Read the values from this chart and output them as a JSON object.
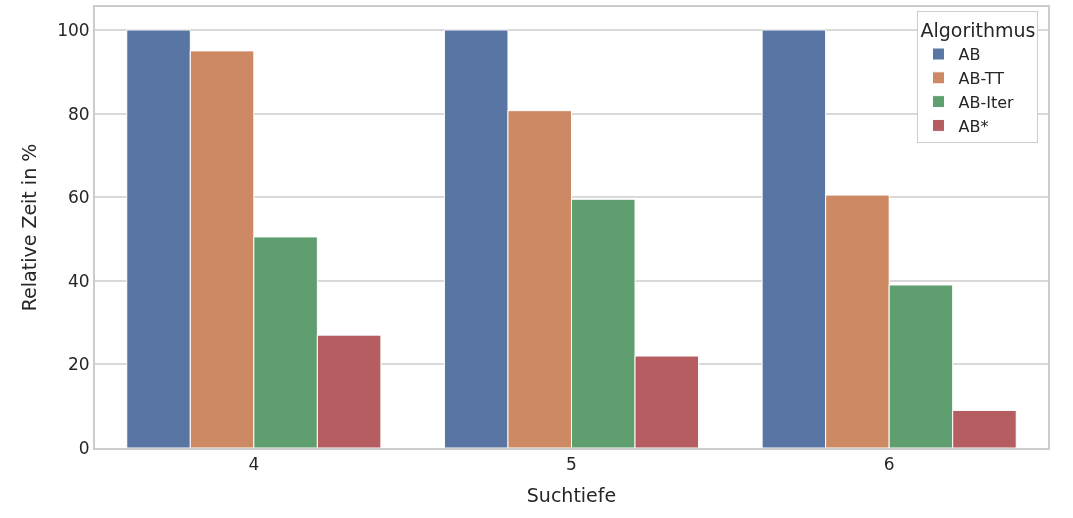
{
  "chart_data": {
    "type": "bar",
    "xlabel": "Suchtiefe",
    "ylabel": "Relative Zeit in %",
    "legend_title": "Algorithmus",
    "categories": [
      "4",
      "5",
      "6"
    ],
    "series": [
      {
        "name": "AB",
        "color": "#5875a4",
        "values": [
          100,
          100,
          100
        ]
      },
      {
        "name": "AB-TT",
        "color": "#cc8963",
        "values": [
          95,
          80.7,
          60.5
        ]
      },
      {
        "name": "AB-Iter",
        "color": "#5f9e6e",
        "values": [
          50.5,
          59.5,
          39
        ]
      },
      {
        "name": "AB*",
        "color": "#b55d60",
        "values": [
          27,
          22,
          9
        ]
      }
    ],
    "ylim": [
      0,
      105.5
    ],
    "yticks": [
      0,
      20,
      40,
      60,
      80,
      100
    ],
    "grid": "y",
    "legend": "top right"
  }
}
